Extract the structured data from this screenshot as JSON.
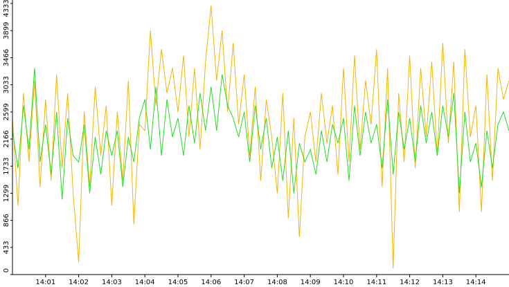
{
  "chart_data": {
    "type": "line",
    "categories": [
      null,
      null,
      null,
      null,
      null,
      null,
      "14:01",
      null,
      null,
      null,
      null,
      null,
      "14:02",
      null,
      null,
      null,
      null,
      null,
      "14:03",
      null,
      null,
      null,
      null,
      null,
      "14:04",
      null,
      null,
      null,
      null,
      null,
      "14:05",
      null,
      null,
      null,
      null,
      null,
      "14:06",
      null,
      null,
      null,
      null,
      null,
      "14:07",
      null,
      null,
      null,
      null,
      null,
      "14:08",
      null,
      null,
      null,
      null,
      null,
      "14:09",
      null,
      null,
      null,
      null,
      null,
      "14:10",
      null,
      null,
      null,
      null,
      null,
      "14:11",
      null,
      null,
      null,
      null,
      null,
      "14:12",
      null,
      null,
      null,
      null,
      null,
      "14:13",
      null,
      null,
      null,
      null,
      null,
      "14:14",
      null,
      null,
      null,
      null,
      null,
      null
    ],
    "series": [
      {
        "color": "#f5b400",
        "values": [
          2500,
          1100,
          2900,
          1800,
          3100,
          1400,
          2800,
          1500,
          3200,
          1700,
          2900,
          1300,
          200,
          2600,
          1400,
          3000,
          1900,
          2700,
          1100,
          2600,
          1500,
          3100,
          800,
          2400,
          2300,
          3900,
          2700,
          3600,
          2900,
          3300,
          2600,
          3500,
          2200,
          3300,
          2000,
          3400,
          4300,
          3100,
          3900,
          2600,
          3700,
          2400,
          3200,
          1900,
          3000,
          1500,
          2800,
          2200,
          1300,
          2900,
          900,
          2500,
          600,
          2200,
          2600,
          1800,
          2900,
          2100,
          2700,
          1600,
          3300,
          1800,
          3500,
          2000,
          3100,
          2400,
          3600,
          1400,
          3300,
          100,
          2900,
          1800,
          3500,
          1700,
          3300,
          2200,
          3400,
          1900,
          3700,
          2100,
          3400,
          1000,
          3600,
          2200,
          2700,
          1000,
          3200,
          1500,
          3300,
          2800,
          3100
        ]
      },
      {
        "color": "#22dd22",
        "values": [
          2300,
          1700,
          2700,
          2000,
          3300,
          1800,
          2400,
          1600,
          2600,
          1200,
          2500,
          1900,
          1800,
          2400,
          1300,
          2200,
          1600,
          2300,
          1900,
          2300,
          1400,
          2200,
          1800,
          2500,
          2800,
          2000,
          3000,
          1900,
          2800,
          2200,
          2500,
          1900,
          2700,
          2100,
          2900,
          2300,
          3000,
          2300,
          3200,
          2700,
          2500,
          2200,
          2600,
          1800,
          2700,
          2000,
          2500,
          1700,
          2200,
          1500,
          2300,
          1300,
          2100,
          1800,
          2000,
          1600,
          2300,
          1800,
          2400,
          2100,
          2500,
          1500,
          2700,
          1900,
          2600,
          2100,
          2400,
          1700,
          2800,
          1600,
          2600,
          2000,
          2500,
          1800,
          2700,
          2100,
          2600,
          1900,
          2700,
          2200,
          2900,
          1300,
          2600,
          1800,
          2100,
          1400,
          2300,
          1700,
          2400,
          2600,
          2300
        ]
      }
    ],
    "ylim": [
      0,
      4333
    ],
    "yticks": [
      0,
      433,
      866,
      1299,
      1733,
      2166,
      2599,
      3033,
      3466,
      3899,
      4333
    ]
  }
}
